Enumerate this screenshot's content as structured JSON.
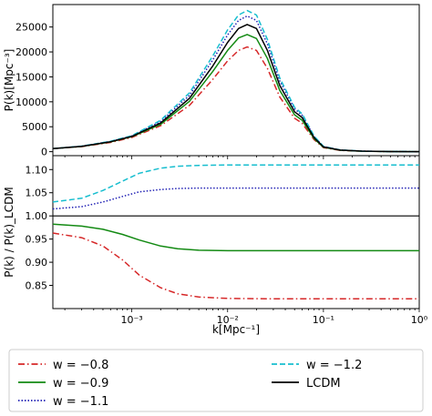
{
  "chart_data": [
    {
      "type": "line",
      "panel": "top",
      "xscale": "log",
      "xlim": [
        0.00015,
        1
      ],
      "ylim": [
        -800,
        29500
      ],
      "ylabel": "P(k)[Mpc⁻³]",
      "yticks": [
        "0",
        "5000",
        "10000",
        "15000",
        "20000",
        "25000"
      ],
      "x": [
        0.00015,
        0.0003,
        0.0006,
        0.001,
        0.002,
        0.004,
        0.007,
        0.01,
        0.013,
        0.016,
        0.02,
        0.026,
        0.035,
        0.05,
        0.06,
        0.08,
        0.1,
        0.15,
        0.25,
        0.5,
        1.0
      ],
      "series": [
        {
          "name": "w = −0.8",
          "color": "#d62728",
          "dash": "dashdot",
          "values": [
            600,
            1000,
            1850,
            2850,
            5200,
            9300,
            14500,
            18200,
            20300,
            21000,
            20300,
            16700,
            11000,
            6700,
            5700,
            2400,
            800,
            260,
            90,
            20,
            5
          ]
        },
        {
          "name": "w = −0.9",
          "color": "#138a13",
          "dash": "solid",
          "values": [
            600,
            1050,
            1950,
            3000,
            5500,
            10100,
            16100,
            20300,
            22800,
            23500,
            22700,
            18700,
            12300,
            7400,
            6300,
            2600,
            880,
            290,
            100,
            22,
            5
          ]
        },
        {
          "name": "w = −1.1",
          "color": "#1f1fb4",
          "dash": "dotted",
          "values": [
            600,
            1100,
            2050,
            3150,
            6050,
            11300,
            18400,
            23400,
            26300,
            27200,
            26300,
            21600,
            14200,
            8600,
            7300,
            3000,
            1020,
            330,
            115,
            25,
            6
          ]
        },
        {
          "name": "w = −1.2",
          "color": "#17becf",
          "dash": "dashed",
          "values": [
            600,
            1110,
            2080,
            3200,
            6300,
            11800,
            19200,
            24400,
            27400,
            28300,
            27400,
            22500,
            14800,
            8900,
            7600,
            3100,
            1060,
            350,
            120,
            26,
            6
          ]
        },
        {
          "name": "LCDM",
          "color": "#000000",
          "dash": "solid",
          "values": [
            600,
            1080,
            2000,
            3050,
            5750,
            10700,
            17200,
            21900,
            24700,
            25500,
            24700,
            20300,
            13300,
            8000,
            6850,
            2800,
            950,
            310,
            108,
            24,
            5
          ]
        }
      ]
    },
    {
      "type": "line",
      "panel": "bottom",
      "xscale": "log",
      "xlim": [
        0.00015,
        1
      ],
      "ylim": [
        0.8,
        1.13
      ],
      "xlabel": "k[Mpc⁻¹]",
      "ylabel": "P(k) / P(k)_LCDM",
      "xticks": [
        "10⁻³",
        "10⁻²",
        "10⁻¹",
        "10⁰"
      ],
      "yticks": [
        "0.85",
        "0.90",
        "0.95",
        "1.00",
        "1.05",
        "1.10"
      ],
      "hline": 1.0,
      "x": [
        0.00015,
        0.0003,
        0.0005,
        0.0008,
        0.0012,
        0.002,
        0.003,
        0.005,
        0.01,
        0.03,
        0.1,
        0.3,
        1.0
      ],
      "series": [
        {
          "name": "w = −0.8",
          "color": "#d62728",
          "dash": "dashdot",
          "values": [
            0.963,
            0.953,
            0.935,
            0.905,
            0.872,
            0.845,
            0.832,
            0.825,
            0.822,
            0.821,
            0.821,
            0.821,
            0.821
          ]
        },
        {
          "name": "w = −0.9",
          "color": "#138a13",
          "dash": "solid",
          "values": [
            0.982,
            0.978,
            0.971,
            0.96,
            0.948,
            0.935,
            0.929,
            0.926,
            0.925,
            0.925,
            0.925,
            0.925,
            0.925
          ]
        },
        {
          "name": "w = −1.1",
          "color": "#1f1fb4",
          "dash": "dotted",
          "values": [
            1.015,
            1.02,
            1.03,
            1.042,
            1.052,
            1.057,
            1.059,
            1.06,
            1.06,
            1.06,
            1.06,
            1.06,
            1.06
          ]
        },
        {
          "name": "w = −1.2",
          "color": "#17becf",
          "dash": "dashed",
          "values": [
            1.03,
            1.038,
            1.055,
            1.075,
            1.092,
            1.103,
            1.107,
            1.109,
            1.11,
            1.11,
            1.11,
            1.11,
            1.11
          ]
        }
      ]
    }
  ],
  "legend": {
    "placement": "bottom",
    "entries": [
      {
        "label": "w = −0.8",
        "color": "#d62728",
        "dash": "dashdot"
      },
      {
        "label": "w = −0.9",
        "color": "#138a13",
        "dash": "solid"
      },
      {
        "label": "w = −1.1",
        "color": "#1f1fb4",
        "dash": "dotted"
      },
      {
        "label": "w = −1.2",
        "color": "#17becf",
        "dash": "dashed"
      },
      {
        "label": "LCDM",
        "color": "#000000",
        "dash": "solid"
      }
    ]
  }
}
